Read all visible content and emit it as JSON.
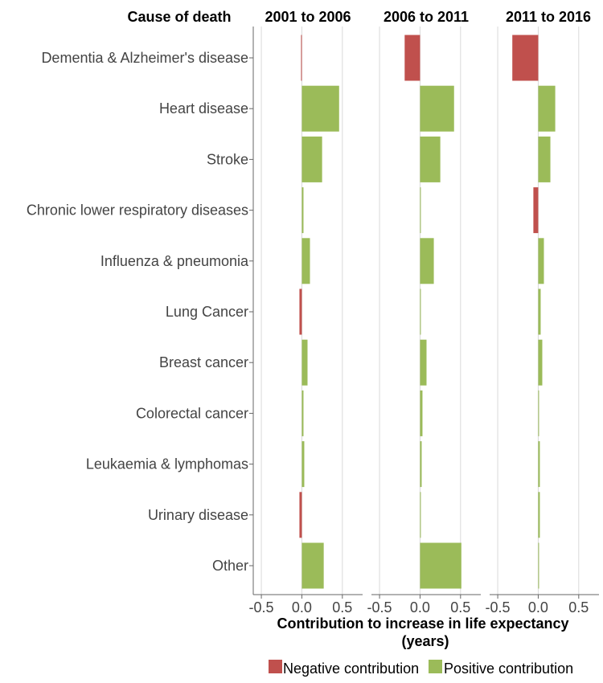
{
  "chart_data": {
    "type": "bar",
    "orientation": "horizontal",
    "category_header": "Cause of death",
    "categories": [
      "Dementia & Alzheimer's disease",
      "Heart disease",
      "Stroke",
      "Chronic lower respiratory diseases",
      "Influenza & pneumonia",
      "Lung Cancer",
      "Breast cancer",
      "Colorectal cancer",
      "Leukaemia & lymphomas",
      "Urinary disease",
      "Other"
    ],
    "panels": [
      {
        "title": "2001 to 2006",
        "values": [
          -0.01,
          0.46,
          0.25,
          0.02,
          0.1,
          -0.03,
          0.07,
          0.02,
          0.03,
          -0.03,
          0.27
        ]
      },
      {
        "title": "2006 to 2011",
        "values": [
          -0.19,
          0.42,
          0.25,
          0.01,
          0.17,
          0.01,
          0.08,
          0.03,
          0.02,
          0.0,
          0.51
        ]
      },
      {
        "title": "2011 to 2016",
        "values": [
          -0.32,
          0.21,
          0.15,
          -0.06,
          0.07,
          0.03,
          0.05,
          0.01,
          0.02,
          0.02,
          0.01
        ]
      }
    ],
    "xlim": [
      -0.6,
      0.75
    ],
    "xticks": [
      -0.5,
      0.0,
      0.5
    ],
    "xtick_labels": [
      "-0.5",
      "0.0",
      "0.5"
    ],
    "xlabel_line1": "Contribution to increase in life expectancy",
    "xlabel_line2": "(years)",
    "grid": "vertical",
    "legend": {
      "position": "bottom-right",
      "items": [
        {
          "label": "Negative contribution",
          "color": "#c0504d"
        },
        {
          "label": "Positive contribution",
          "color": "#9bbb59"
        }
      ]
    },
    "colors": {
      "negative": "#c0504d",
      "positive": "#9bbb59"
    }
  }
}
